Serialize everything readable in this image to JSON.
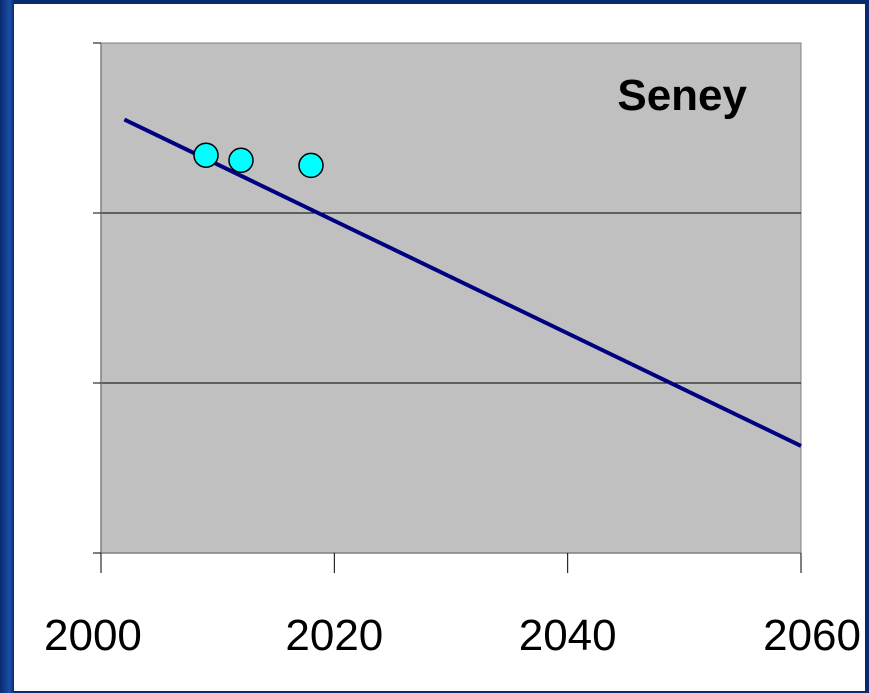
{
  "chart_data": {
    "type": "scatter",
    "title": "Seney",
    "xlabel": "",
    "ylabel": "",
    "xlim": [
      2000,
      2060
    ],
    "x_ticks": [
      "2000",
      "2020",
      "2040",
      "2060"
    ],
    "y_gridlines": 4,
    "grid": true,
    "plot_background": "#c0c0c0",
    "series": [
      {
        "kind": "points",
        "color": "#00ffff",
        "points": [
          {
            "x": 2009,
            "y": 0.78
          },
          {
            "x": 2012,
            "y": 0.77
          },
          {
            "x": 2018,
            "y": 0.76
          }
        ]
      },
      {
        "kind": "trend-line",
        "color": "#000080",
        "points": [
          {
            "x": 2002,
            "y": 0.85
          },
          {
            "x": 2060,
            "y": 0.21
          }
        ]
      }
    ]
  }
}
